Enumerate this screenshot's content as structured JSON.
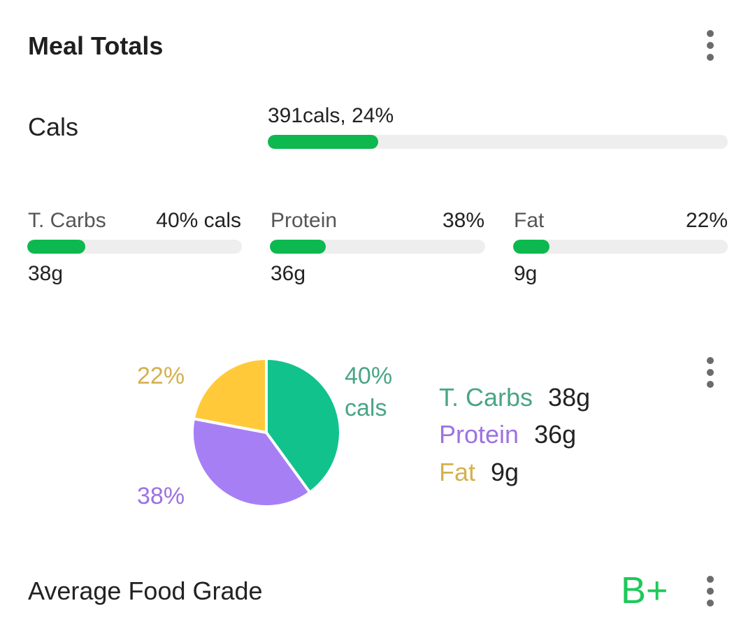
{
  "header": {
    "title": "Meal Totals",
    "menu_icon": "more-vertical-icon"
  },
  "calories": {
    "label": "Cals",
    "value_text": "391cals, 24%",
    "progress_fraction": 0.24
  },
  "macros": [
    {
      "label": "T. Carbs",
      "percent_text": "40% cals",
      "grams": "38g",
      "progress_fraction": 0.27
    },
    {
      "label": "Protein",
      "percent_text": "38%",
      "grams": "36g",
      "progress_fraction": 0.26
    },
    {
      "label": "Fat",
      "percent_text": "22%",
      "grams": "9g",
      "progress_fraction": 0.17
    }
  ],
  "chart_data": {
    "type": "pie",
    "slices": [
      {
        "name": "T. Carbs",
        "value": 40,
        "color": "#12c28c"
      },
      {
        "name": "Protein",
        "value": 38,
        "color": "#a77ff5"
      },
      {
        "name": "Fat",
        "value": 22,
        "color": "#ffc93a"
      }
    ],
    "slice_labels": {
      "carbs": "40%",
      "carbs_sub": "cals",
      "protein": "38%",
      "fat": "22%"
    },
    "legend": [
      {
        "name": "T. Carbs",
        "amount": "38g",
        "color": "#3a9e7e"
      },
      {
        "name": "Protein",
        "amount": "36g",
        "color": "#9d72e3"
      },
      {
        "name": "Fat",
        "amount": "9g",
        "color": "#d4b04f"
      }
    ]
  },
  "grade": {
    "label": "Average Food Grade",
    "value": "B+"
  },
  "colors": {
    "progress_fill": "#0db84f",
    "progress_track": "#eeeeee",
    "grade": "#1ec95a",
    "carbs_label": "#4aa585",
    "protein_label": "#9d72e3",
    "fat_label": "#d4b04f"
  }
}
